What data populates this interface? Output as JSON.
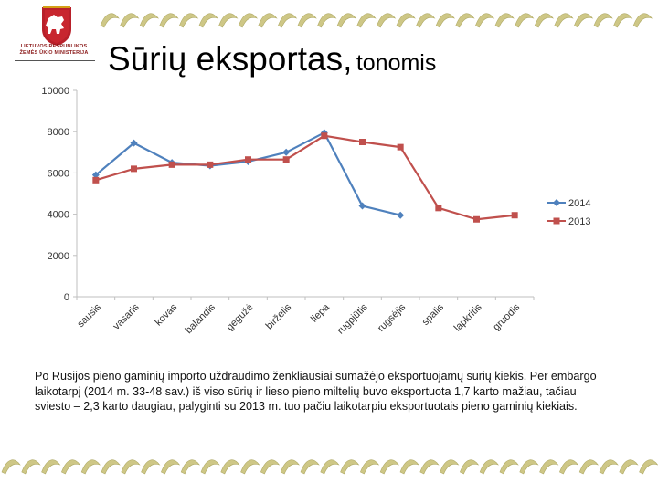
{
  "logo": {
    "caption_line1": "LIETUVOS RESPUBLIKOS",
    "caption_line2": "ŽEMĖS ŪKIO MINISTERIJA"
  },
  "title": {
    "main": "Sūrių eksportas,",
    "sub": "tonomis"
  },
  "chart_data": {
    "type": "line",
    "categories": [
      "sausis",
      "vasaris",
      "kovas",
      "balandis",
      "gegužė",
      "birželis",
      "liepa",
      "rugpjūtis",
      "rugsėjis",
      "spalis",
      "lapkritis",
      "gruodis"
    ],
    "yticks": [
      0,
      2000,
      4000,
      6000,
      8000,
      10000
    ],
    "ylim": [
      0,
      10000
    ],
    "grid": false,
    "legend_position": "right",
    "series": [
      {
        "name": "2014",
        "color": "#4f81bd",
        "marker": "diamond",
        "values": [
          5900,
          7450,
          6500,
          6350,
          6550,
          7000,
          7950,
          4400,
          3950,
          null,
          null,
          null
        ]
      },
      {
        "name": "2013",
        "color": "#c0504d",
        "marker": "square",
        "values": [
          5650,
          6200,
          6400,
          6400,
          6650,
          6650,
          7800,
          7500,
          7250,
          4300,
          3750,
          3950
        ]
      }
    ]
  },
  "caption": "Po Rusijos pieno gaminių importo uždraudimo ženkliausiai sumažėjo eksportuojamų sūrių kiekis. Per embargo laikotarpį (2014 m. 33-48 sav.) iš viso sūrių ir lieso pieno miltelių buvo eksportuota 1,7 karto mažiau, tačiau sviesto – 2,3 karto daugiau, palyginti su 2013 m. tuo pačiu laikotarpiu eksportuotais pieno gaminių kiekiais."
}
